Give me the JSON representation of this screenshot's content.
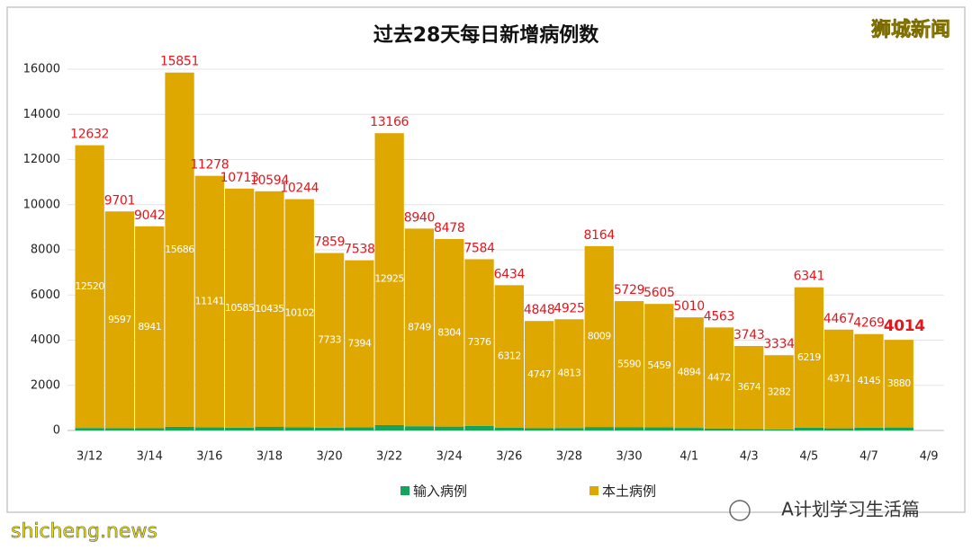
{
  "chart_data": {
    "type": "stacked_bar",
    "title": "过去28天每日新增病例数",
    "watermark": "狮城新闻",
    "footer": "A计划学习生活篇",
    "source": "shicheng.news",
    "categories": [
      "3/12",
      null,
      "3/14",
      null,
      "3/16",
      null,
      "3/18",
      null,
      "3/20",
      null,
      "3/22",
      null,
      "3/24",
      null,
      "3/26",
      null,
      "3/28",
      null,
      "3/30",
      null,
      "4/1",
      null,
      "4/3",
      null,
      "4/5",
      null,
      "4/7",
      null,
      "4/9"
    ],
    "series": [
      {
        "name": "输入病例",
        "color": "#17a35c",
        "values": [
          112,
          104,
          101,
          165,
          137,
          128,
          159,
          142,
          126,
          144,
          241,
          191,
          174,
          208,
          122,
          101,
          112,
          155,
          139,
          146,
          116,
          91,
          69,
          52,
          122,
          96,
          124,
          134,
          null
        ]
      },
      {
        "name": "本土病例",
        "color": "#dfa800",
        "values": [
          12520,
          9597,
          8941,
          15686,
          11141,
          10585,
          10435,
          10102,
          7733,
          7394,
          12925,
          8749,
          8304,
          7376,
          6312,
          4747,
          4813,
          8009,
          5590,
          5459,
          4894,
          4472,
          3674,
          3282,
          6219,
          4371,
          4145,
          3880,
          null
        ]
      }
    ],
    "totals": [
      12632,
      9701,
      9042,
      15851,
      11278,
      10713,
      10594,
      10244,
      7859,
      7538,
      13166,
      8940,
      8478,
      7584,
      6434,
      4848,
      4925,
      8164,
      5729,
      5605,
      5010,
      4563,
      3743,
      3334,
      6341,
      4467,
      4269,
      4014,
      null
    ],
    "totals_color": "#e3161c",
    "ylim": [
      0,
      16000
    ],
    "yticks": [
      0,
      2000,
      4000,
      6000,
      8000,
      10000,
      12000,
      14000,
      16000
    ],
    "grid": true
  }
}
